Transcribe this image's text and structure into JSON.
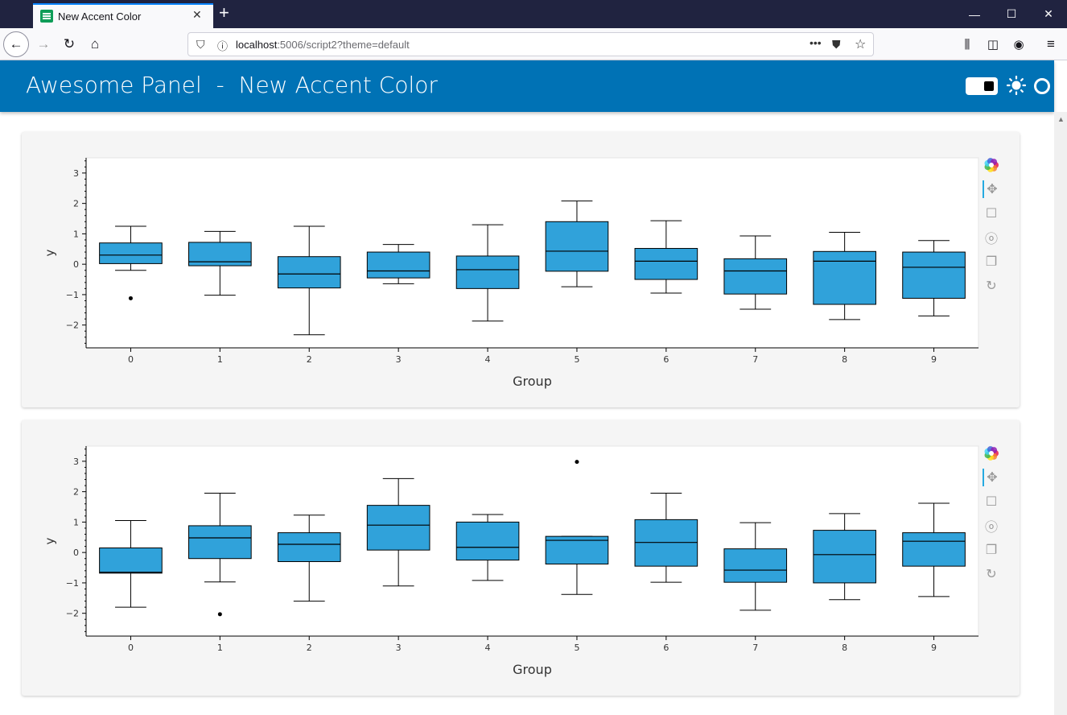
{
  "browser": {
    "tab_title": "New Accent Color",
    "new_tab_symbol": "+",
    "url_host": "localhost",
    "url_rest": ":5006/script2?theme=default",
    "icons": [
      "back-arrow-icon",
      "forward-arrow-icon",
      "reload-icon",
      "home-icon",
      "shield-icon",
      "info-icon",
      "more-icon",
      "pocket-icon",
      "star-icon",
      "library-icon",
      "sidebar-icon",
      "account-icon",
      "menu-icon"
    ]
  },
  "header": {
    "title": "Awesome Panel  -  New Accent Color"
  },
  "colors": {
    "accent": "#0072B5",
    "box_fill": "#30a2da",
    "page_bg": "#f5f5f5"
  },
  "chart_data": [
    {
      "type": "boxplot",
      "title": "",
      "xlabel": "Group",
      "ylabel": "y",
      "ylim": [
        -2.75,
        3.5
      ],
      "yticks": [
        -2,
        -1,
        0,
        1,
        2,
        3
      ],
      "categories": [
        "0",
        "1",
        "2",
        "3",
        "4",
        "5",
        "6",
        "7",
        "8",
        "9"
      ],
      "boxes": [
        {
          "group": "0",
          "whisker_low": -0.2,
          "q1": 0.02,
          "median": 0.3,
          "q3": 0.7,
          "whisker_high": 1.25,
          "outliers": [
            -1.12
          ]
        },
        {
          "group": "1",
          "whisker_low": -1.02,
          "q1": -0.05,
          "median": 0.08,
          "q3": 0.72,
          "whisker_high": 1.08,
          "outliers": []
        },
        {
          "group": "2",
          "whisker_low": -2.32,
          "q1": -0.78,
          "median": -0.32,
          "q3": 0.25,
          "whisker_high": 1.25,
          "outliers": []
        },
        {
          "group": "3",
          "whisker_low": -0.64,
          "q1": -0.45,
          "median": -0.22,
          "q3": 0.4,
          "whisker_high": 0.65,
          "outliers": []
        },
        {
          "group": "4",
          "whisker_low": -1.87,
          "q1": -0.8,
          "median": -0.18,
          "q3": 0.27,
          "whisker_high": 1.3,
          "outliers": []
        },
        {
          "group": "5",
          "whisker_low": -0.74,
          "q1": -0.23,
          "median": 0.43,
          "q3": 1.4,
          "whisker_high": 2.08,
          "outliers": []
        },
        {
          "group": "6",
          "whisker_low": -0.95,
          "q1": -0.5,
          "median": 0.1,
          "q3": 0.52,
          "whisker_high": 1.43,
          "outliers": []
        },
        {
          "group": "7",
          "whisker_low": -1.48,
          "q1": -0.98,
          "median": -0.22,
          "q3": 0.18,
          "whisker_high": 0.93,
          "outliers": []
        },
        {
          "group": "8",
          "whisker_low": -1.82,
          "q1": -1.32,
          "median": 0.1,
          "q3": 0.42,
          "whisker_high": 1.05,
          "outliers": []
        },
        {
          "group": "9",
          "whisker_low": -1.7,
          "q1": -1.12,
          "median": -0.1,
          "q3": 0.4,
          "whisker_high": 0.78,
          "outliers": []
        }
      ]
    },
    {
      "type": "boxplot",
      "title": "",
      "xlabel": "Group",
      "ylabel": "y",
      "ylim": [
        -2.75,
        3.5
      ],
      "yticks": [
        -2,
        -1,
        0,
        1,
        2,
        3
      ],
      "categories": [
        "0",
        "1",
        "2",
        "3",
        "4",
        "5",
        "6",
        "7",
        "8",
        "9"
      ],
      "boxes": [
        {
          "group": "0",
          "whisker_low": -1.8,
          "q1": -0.68,
          "median": -0.65,
          "q3": 0.15,
          "whisker_high": 1.05,
          "outliers": []
        },
        {
          "group": "1",
          "whisker_low": -0.97,
          "q1": -0.2,
          "median": 0.48,
          "q3": 0.88,
          "whisker_high": 1.95,
          "outliers": [
            -2.03
          ]
        },
        {
          "group": "2",
          "whisker_low": -1.6,
          "q1": -0.3,
          "median": 0.27,
          "q3": 0.65,
          "whisker_high": 1.23,
          "outliers": []
        },
        {
          "group": "3",
          "whisker_low": -1.1,
          "q1": 0.08,
          "median": 0.9,
          "q3": 1.55,
          "whisker_high": 2.43,
          "outliers": []
        },
        {
          "group": "4",
          "whisker_low": -0.92,
          "q1": -0.25,
          "median": 0.17,
          "q3": 1.0,
          "whisker_high": 1.25,
          "outliers": []
        },
        {
          "group": "5",
          "whisker_low": -1.38,
          "q1": -0.38,
          "median": 0.4,
          "q3": 0.53,
          "whisker_high": 0.53,
          "outliers": [
            2.98
          ]
        },
        {
          "group": "6",
          "whisker_low": -0.98,
          "q1": -0.45,
          "median": 0.33,
          "q3": 1.08,
          "whisker_high": 1.95,
          "outliers": []
        },
        {
          "group": "7",
          "whisker_low": -1.9,
          "q1": -0.98,
          "median": -0.58,
          "q3": 0.12,
          "whisker_high": 0.98,
          "outliers": []
        },
        {
          "group": "8",
          "whisker_low": -1.55,
          "q1": -1.0,
          "median": -0.07,
          "q3": 0.73,
          "whisker_high": 1.28,
          "outliers": []
        },
        {
          "group": "9",
          "whisker_low": -1.45,
          "q1": -0.45,
          "median": 0.37,
          "q3": 0.65,
          "whisker_high": 1.62,
          "outliers": []
        }
      ]
    }
  ],
  "toolbar_icons": [
    "bokeh-logo-icon",
    "pan-icon",
    "box-zoom-icon",
    "wheel-zoom-icon",
    "save-icon",
    "reset-icon"
  ]
}
